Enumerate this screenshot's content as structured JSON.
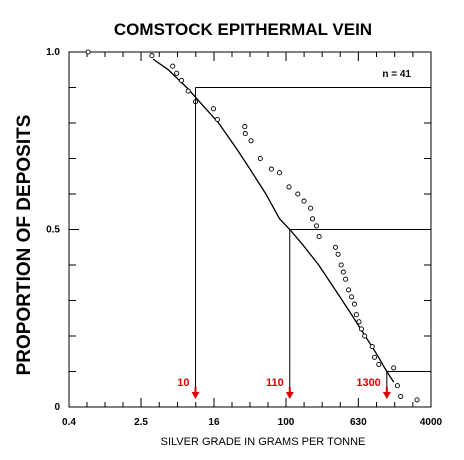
{
  "chart_data": {
    "type": "scatter",
    "title": "COMSTOCK EPITHERMAL VEIN",
    "xlabel": "SILVER GRADE IN GRAMS PER TONNE",
    "ylabel": "PROPORTION OF DEPOSITS",
    "x_scale": "log",
    "xlim": [
      0.4,
      4000
    ],
    "ylim": [
      0,
      1
    ],
    "x_tick_labels": [
      "0.4",
      "2.5",
      "16",
      "100",
      "630",
      "4000"
    ],
    "x_ticks": [
      0.4,
      2.5,
      16,
      100,
      630,
      4000
    ],
    "y_tick_labels": [
      "0",
      "0.5",
      "1.0"
    ],
    "y_ticks": [
      0,
      0.5,
      1.0
    ],
    "annotation": "n = 41",
    "grid": false,
    "series": [
      {
        "type": "scatter",
        "marker": "circle-open",
        "points": [
          [
            0.65,
            1.0
          ],
          [
            3.3,
            0.99
          ],
          [
            5.6,
            0.96
          ],
          [
            6.2,
            0.94
          ],
          [
            7.0,
            0.92
          ],
          [
            8.3,
            0.89
          ],
          [
            10.0,
            0.86
          ],
          [
            15.8,
            0.84
          ],
          [
            17.5,
            0.81
          ],
          [
            35.0,
            0.79
          ],
          [
            35.5,
            0.77
          ],
          [
            41.0,
            0.75
          ],
          [
            52.0,
            0.7
          ],
          [
            69.0,
            0.67
          ],
          [
            85.0,
            0.66
          ],
          [
            108,
            0.62
          ],
          [
            135,
            0.6
          ],
          [
            158,
            0.58
          ],
          [
            187,
            0.56
          ],
          [
            196,
            0.53
          ],
          [
            217,
            0.51
          ],
          [
            232,
            0.48
          ],
          [
            352,
            0.45
          ],
          [
            376,
            0.43
          ],
          [
            407,
            0.4
          ],
          [
            430,
            0.38
          ],
          [
            455,
            0.36
          ],
          [
            490,
            0.33
          ],
          [
            530,
            0.31
          ],
          [
            570,
            0.29
          ],
          [
            600,
            0.26
          ],
          [
            640,
            0.24
          ],
          [
            680,
            0.22
          ],
          [
            740,
            0.2
          ],
          [
            895,
            0.17
          ],
          [
            950,
            0.14
          ],
          [
            1060,
            0.12
          ],
          [
            1550,
            0.11
          ],
          [
            1700,
            0.06
          ],
          [
            1850,
            0.03
          ],
          [
            2800,
            0.02
          ]
        ]
      },
      {
        "type": "line",
        "points": [
          [
            3.4,
            0.98
          ],
          [
            5.0,
            0.95
          ],
          [
            8.0,
            0.9
          ],
          [
            12.0,
            0.85
          ],
          [
            18.0,
            0.8
          ],
          [
            28.0,
            0.73
          ],
          [
            40.0,
            0.67
          ],
          [
            60.0,
            0.6
          ],
          [
            85.0,
            0.53
          ],
          [
            110,
            0.5
          ],
          [
            150,
            0.46
          ],
          [
            230,
            0.4
          ],
          [
            350,
            0.33
          ],
          [
            500,
            0.27
          ],
          [
            750,
            0.2
          ],
          [
            1000,
            0.15
          ],
          [
            1300,
            0.1
          ],
          [
            1550,
            0.07
          ]
        ]
      }
    ],
    "percentile_markers": [
      {
        "label": "10",
        "x": 10,
        "y": 0.9
      },
      {
        "label": "110",
        "x": 110,
        "y": 0.5
      },
      {
        "label": "1300",
        "x": 1300,
        "y": 0.1
      }
    ],
    "colors": {
      "axes": "#000000",
      "markers_text": "#dd0000",
      "markers_arrow": "#dd0000"
    }
  }
}
